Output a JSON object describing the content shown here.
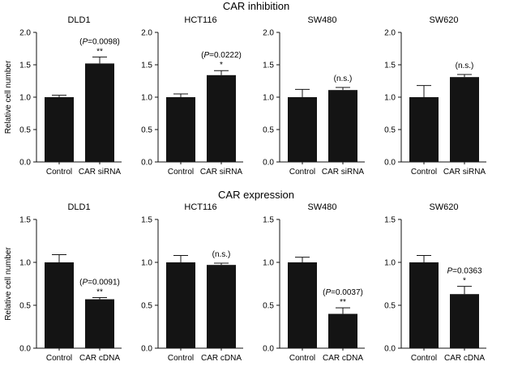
{
  "section_titles": [
    "CAR inhibition",
    "CAR expression"
  ],
  "y_label": "Relative cell number",
  "chart_data": [
    {
      "type": "bar",
      "section": "CAR inhibition",
      "title": "DLD1",
      "categories": [
        "Control",
        "CAR siRNA"
      ],
      "values": [
        1.0,
        1.52
      ],
      "errors": [
        0.03,
        0.1
      ],
      "sig": [
        "",
        "**"
      ],
      "p_text": "(P=0.0098)",
      "ylabel": "Relative cell number",
      "ylim": [
        0,
        2.0
      ],
      "yticks": [
        "0.0",
        "0.5",
        "1.0",
        "1.5",
        "2.0"
      ]
    },
    {
      "type": "bar",
      "section": "CAR inhibition",
      "title": "HCT116",
      "categories": [
        "Control",
        "CAR siRNA"
      ],
      "values": [
        1.0,
        1.34
      ],
      "errors": [
        0.05,
        0.07
      ],
      "sig": [
        "",
        "*"
      ],
      "p_text": "(P=0.0222)",
      "ylabel": "",
      "ylim": [
        0,
        2.0
      ],
      "yticks": [
        "0.0",
        "0.5",
        "1.0",
        "1.5",
        "2.0"
      ]
    },
    {
      "type": "bar",
      "section": "CAR inhibition",
      "title": "SW480",
      "categories": [
        "Control",
        "CAR siRNA"
      ],
      "values": [
        1.0,
        1.11
      ],
      "errors": [
        0.12,
        0.04
      ],
      "sig": [
        "",
        ""
      ],
      "p_text": "(n.s.)",
      "ylabel": "",
      "ylim": [
        0,
        2.0
      ],
      "yticks": [
        "0.0",
        "0.5",
        "1.0",
        "1.5",
        "2.0"
      ]
    },
    {
      "type": "bar",
      "section": "CAR inhibition",
      "title": "SW620",
      "categories": [
        "Control",
        "CAR siRNA"
      ],
      "values": [
        1.0,
        1.31
      ],
      "errors": [
        0.18,
        0.04
      ],
      "sig": [
        "",
        ""
      ],
      "p_text": "(n.s.)",
      "ylabel": "",
      "ylim": [
        0,
        2.0
      ],
      "yticks": [
        "0.0",
        "0.5",
        "1.0",
        "1.5",
        "2.0"
      ]
    },
    {
      "type": "bar",
      "section": "CAR expression",
      "title": "DLD1",
      "categories": [
        "Control",
        "CAR cDNA"
      ],
      "values": [
        1.0,
        0.57
      ],
      "errors": [
        0.09,
        0.02
      ],
      "sig": [
        "",
        "**"
      ],
      "p_text": "(P=0.0091)",
      "ylabel": "Relative cell number",
      "ylim": [
        0,
        1.5
      ],
      "yticks": [
        "0.0",
        "0.5",
        "1.0",
        "1.5"
      ]
    },
    {
      "type": "bar",
      "section": "CAR expression",
      "title": "HCT116",
      "categories": [
        "Control",
        "CAR cDNA"
      ],
      "values": [
        1.0,
        0.97
      ],
      "errors": [
        0.08,
        0.02
      ],
      "sig": [
        "",
        ""
      ],
      "p_text": "(n.s.)",
      "ylabel": "",
      "ylim": [
        0,
        1.5
      ],
      "yticks": [
        "0.0",
        "0.5",
        "1.0",
        "1.5"
      ]
    },
    {
      "type": "bar",
      "section": "CAR expression",
      "title": "SW480",
      "categories": [
        "Control",
        "CAR cDNA"
      ],
      "values": [
        1.0,
        0.4
      ],
      "errors": [
        0.06,
        0.07
      ],
      "sig": [
        "",
        "**"
      ],
      "p_text": "(P=0.0037)",
      "ylabel": "",
      "ylim": [
        0,
        1.5
      ],
      "yticks": [
        "0.0",
        "0.5",
        "1.0",
        "1.5"
      ]
    },
    {
      "type": "bar",
      "section": "CAR expression",
      "title": "SW620",
      "categories": [
        "Control",
        "CAR cDNA"
      ],
      "values": [
        1.0,
        0.63
      ],
      "errors": [
        0.08,
        0.09
      ],
      "sig": [
        "",
        "*"
      ],
      "p_text": "P=0.0363",
      "ylabel": "",
      "ylim": [
        0,
        1.5
      ],
      "yticks": [
        "0.0",
        "0.5",
        "1.0",
        "1.5"
      ]
    }
  ]
}
